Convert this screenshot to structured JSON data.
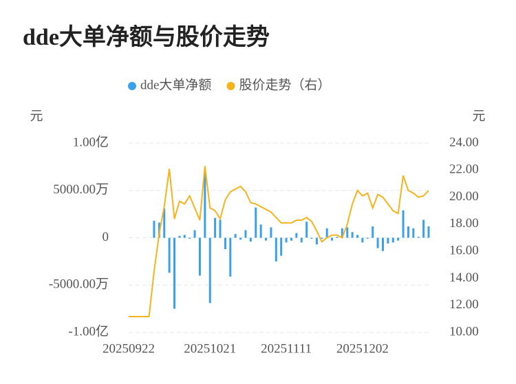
{
  "chart_data": {
    "type": "bar-line",
    "title": "dde大单净额与股价走势",
    "y_axis_label": "元",
    "y2_axis_label": "元",
    "categories": [
      "20250922",
      null,
      null,
      null,
      null,
      null,
      null,
      null,
      null,
      null,
      null,
      null,
      null,
      null,
      null,
      null,
      "20251021",
      null,
      null,
      null,
      null,
      null,
      null,
      null,
      null,
      null,
      null,
      null,
      null,
      null,
      null,
      "20251111",
      null,
      null,
      null,
      null,
      null,
      null,
      null,
      null,
      null,
      null,
      null,
      null,
      null,
      null,
      "20251202",
      null,
      null,
      null,
      null,
      null,
      null,
      null,
      null,
      null,
      null,
      null,
      null,
      null
    ],
    "series": [
      {
        "name": "dde大单净额",
        "type": "bar",
        "color": "#3ba0e9",
        "axis": "y",
        "values": [
          null,
          null,
          null,
          null,
          null,
          18000000,
          16000000,
          31000000,
          -37000000,
          -75000000,
          2000000,
          3000000,
          -1000000,
          8000000,
          -40000000,
          68000000,
          -69000000,
          21000000,
          19000000,
          -12000000,
          -41000000,
          4000000,
          -2000000,
          8000000,
          -4000000,
          32000000,
          14000000,
          -3000000,
          11000000,
          -25000000,
          -19000000,
          -5000000,
          -3000000,
          5000000,
          -5000000,
          17000000,
          -1000000,
          -7000000,
          -1000000,
          10000000,
          -3000000,
          1000000,
          10000000,
          11000000,
          6000000,
          3000000,
          -5000000,
          -1000000,
          12000000,
          -11000000,
          -14000000,
          -6000000,
          -5000000,
          -3000000,
          29000000,
          12000000,
          10000000,
          1000000,
          19000000,
          12000000
        ]
      },
      {
        "name": "股价走势（右）",
        "type": "line",
        "color": "#f5b31c",
        "axis": "y2",
        "values": [
          11.17,
          11.17,
          11.17,
          11.17,
          11.17,
          14.5,
          17.3,
          19.3,
          22.1,
          18.4,
          19.7,
          19.5,
          20.1,
          19.2,
          18.3,
          22.3,
          19.2,
          19.0,
          18.4,
          19.8,
          20.4,
          20.6,
          20.8,
          20.4,
          19.6,
          19.5,
          19.3,
          19.1,
          18.9,
          18.5,
          18.1,
          18.1,
          18.1,
          18.3,
          18.3,
          18.5,
          18.2,
          17.5,
          16.7,
          17.0,
          17.2,
          17.2,
          17.0,
          18.0,
          19.5,
          20.5,
          20.1,
          20.3,
          19.2,
          20.2,
          20.0,
          19.5,
          19.0,
          18.8,
          21.6,
          20.5,
          20.3,
          20.0,
          20.1,
          20.5
        ]
      }
    ],
    "ylim": [
      -100000000,
      100000000
    ],
    "yticks": [
      {
        "value": -100000000,
        "label": "-1.00亿"
      },
      {
        "value": -50000000,
        "label": "-5000.00万"
      },
      0,
      {
        "value": 50000000,
        "label": "5000.00万"
      },
      {
        "value": 100000000,
        "label": "1.00亿"
      }
    ],
    "y2lim": [
      10,
      24
    ],
    "y2ticks": [
      {
        "value": 10,
        "label": "10.00"
      },
      {
        "value": 12,
        "label": "12.00"
      },
      {
        "value": 14,
        "label": "14.00"
      },
      {
        "value": 16,
        "label": "16.00"
      },
      {
        "value": 18,
        "label": "18.00"
      },
      {
        "value": 20,
        "label": "20.00"
      },
      {
        "value": 22,
        "label": "22.00"
      },
      {
        "value": 24,
        "label": "24.00"
      }
    ],
    "grid": true
  }
}
